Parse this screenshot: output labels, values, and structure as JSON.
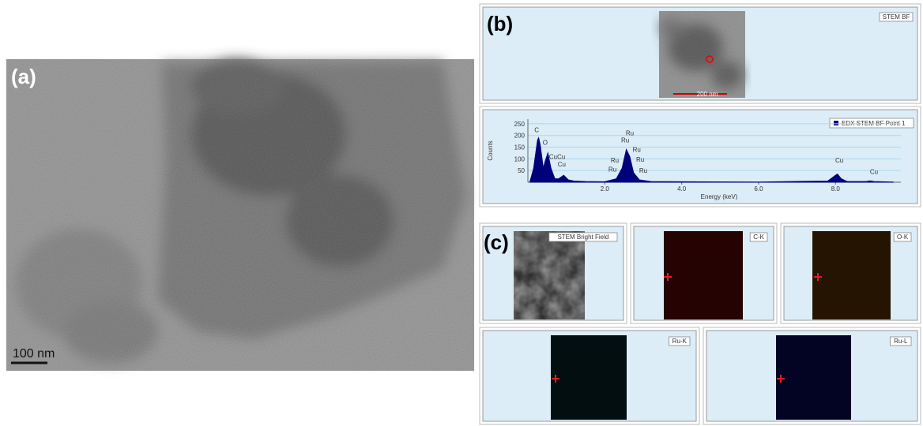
{
  "panel_a": {
    "label": "(a)",
    "scale_bar": "100 nm"
  },
  "panel_b": {
    "label": "(b)",
    "image_label": "STEM BF",
    "scale_bar": "200 nm",
    "spectrum": {
      "legend": "EDX STEM BF Point 1",
      "color": "#00007a",
      "xlabel": "Energy (keV)",
      "ylabel": "Counts",
      "xlim": [
        0,
        9.7
      ],
      "ylim": [
        0,
        270
      ],
      "xticks": [
        {
          "value": 2,
          "label": "2.0"
        },
        {
          "value": 4,
          "label": "4.0"
        },
        {
          "value": 6,
          "label": "6.0"
        },
        {
          "value": 8,
          "label": "8.0"
        }
      ],
      "yticks": [
        50,
        100,
        150,
        200,
        250
      ],
      "grid": true,
      "x": [
        0.05,
        0.15,
        0.25,
        0.28,
        0.32,
        0.4,
        0.45,
        0.52,
        0.6,
        0.7,
        0.8,
        0.93,
        1.05,
        1.2,
        1.5,
        2.0,
        2.3,
        2.45,
        2.56,
        2.65,
        2.75,
        2.9,
        3.2,
        4,
        6,
        7.8,
        8.0,
        8.05,
        8.15,
        8.3,
        8.8,
        8.9,
        9.0,
        9.5
      ],
      "values": [
        0,
        60,
        180,
        190,
        160,
        60,
        90,
        125,
        60,
        15,
        15,
        30,
        10,
        5,
        3,
        2,
        15,
        60,
        140,
        110,
        40,
        10,
        3,
        2,
        1,
        5,
        30,
        35,
        15,
        3,
        3,
        6,
        3,
        1
      ],
      "annotations": [
        {
          "text": "C",
          "x": 0.23,
          "y": 215
        },
        {
          "text": "O",
          "x": 0.45,
          "y": 160
        },
        {
          "text": "CuCu",
          "x": 0.76,
          "y": 100
        },
        {
          "text": "Cu",
          "x": 0.88,
          "y": 68
        },
        {
          "text": "Ru",
          "x": 2.65,
          "y": 200
        },
        {
          "text": "Ru",
          "x": 2.53,
          "y": 170
        },
        {
          "text": "Ru",
          "x": 2.26,
          "y": 85
        },
        {
          "text": "Ru",
          "x": 2.2,
          "y": 45
        },
        {
          "text": "Ru",
          "x": 2.83,
          "y": 130
        },
        {
          "text": "Ru",
          "x": 2.92,
          "y": 88
        },
        {
          "text": "Ru",
          "x": 3.0,
          "y": 40
        },
        {
          "text": "Cu",
          "x": 8.1,
          "y": 85
        },
        {
          "text": "Cu",
          "x": 9.0,
          "y": 35
        }
      ]
    }
  },
  "panel_c": {
    "label": "(c)",
    "maps": [
      {
        "name": "STEM Bright Field",
        "color": "#8a8a8a"
      },
      {
        "name": "C-K",
        "color": "#c01010"
      },
      {
        "name": "O-K",
        "color": "#c0660c"
      },
      {
        "name": "Ru-K",
        "color": "#0c4a50"
      },
      {
        "name": "Ru-L",
        "color": "#1010b0"
      }
    ]
  }
}
